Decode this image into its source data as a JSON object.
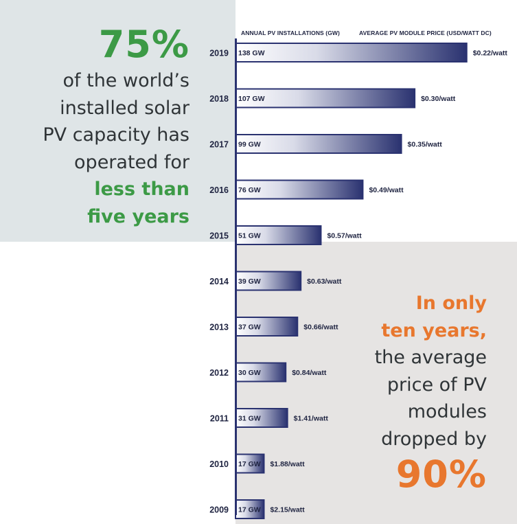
{
  "headline_left": {
    "pct": "75%",
    "lines": [
      "of the world’s",
      "installed solar",
      "PV capacity has",
      "operated for"
    ],
    "highlight_lines": [
      "less than",
      "five years"
    ]
  },
  "headline_right": {
    "highlight_lines": [
      "In only",
      "ten years,"
    ],
    "lines": [
      "the average",
      "price of PV",
      "modules",
      "dropped by"
    ],
    "pct": "90%"
  },
  "colors": {
    "green": "#3c9a46",
    "orange": "#e8772e",
    "navy": "#2a3270",
    "panel_top": "#dfe5e7",
    "panel_bottom": "#e6e4e3"
  },
  "chart_data": {
    "type": "bar",
    "orientation": "horizontal",
    "col_headers": {
      "installations": "ANNUAL PV INSTALLATIONS (GW)",
      "price": "AVERAGE PV MODULE PRICE  (USD/WATT DC)"
    },
    "categories": [
      "2019",
      "2018",
      "2017",
      "2016",
      "2015",
      "2014",
      "2013",
      "2012",
      "2011",
      "2010",
      "2009"
    ],
    "series": [
      {
        "values": [
          138,
          107,
          99,
          76,
          51,
          39,
          37,
          30,
          31,
          17,
          17
        ],
        "labels": [
          "138 GW",
          "107 GW",
          "99 GW",
          "76 GW",
          "51 GW",
          "39 GW",
          "37 GW",
          "30 GW",
          "31 GW",
          "17 GW",
          "17 GW"
        ]
      },
      {
        "values": [
          0.22,
          0.3,
          0.35,
          0.49,
          0.57,
          0.63,
          0.66,
          0.84,
          1.41,
          1.88,
          2.15
        ],
        "labels": [
          "$0.22/watt",
          "$0.30/watt",
          "$0.35/watt",
          "$0.49/watt",
          "$0.57/watt",
          "$0.63/watt",
          "$0.66/watt",
          "$0.84/watt",
          "$1.41/watt",
          "$1.88/watt",
          "$2.15/watt"
        ]
      }
    ]
  }
}
